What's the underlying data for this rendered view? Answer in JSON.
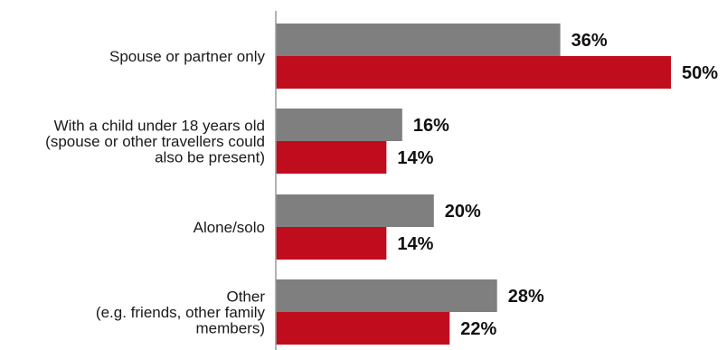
{
  "chart_data": {
    "type": "bar",
    "orientation": "horizontal",
    "categories": [
      [
        "Spouse or partner only"
      ],
      [
        "With a child under 18 years old",
        "(spouse or other travellers could",
        "also be present)"
      ],
      [
        "Alone/solo"
      ],
      [
        "Other",
        "(e.g. friends, other family",
        "members)"
      ]
    ],
    "series": [
      {
        "color": "#7f7f7f",
        "values": [
          36,
          16,
          20,
          28
        ],
        "labels": [
          "36%",
          "16%",
          "20%",
          "28%"
        ]
      },
      {
        "color": "#c00d1e",
        "values": [
          50,
          14,
          14,
          22
        ],
        "labels": [
          "50%",
          "14%",
          "14%",
          "22%"
        ]
      }
    ],
    "xlim": [
      0,
      50
    ],
    "value_suffix": "%",
    "grid": false,
    "legend": "none"
  }
}
